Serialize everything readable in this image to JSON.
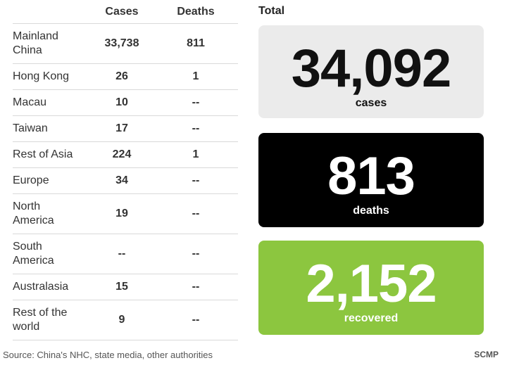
{
  "table": {
    "header": {
      "cases": "Cases",
      "deaths": "Deaths"
    },
    "rows": [
      {
        "region_lines": [
          "Mainland",
          "China"
        ],
        "cases": "33,738",
        "deaths": "811"
      },
      {
        "region_lines": [
          "Hong Kong"
        ],
        "cases": "26",
        "deaths": "1"
      },
      {
        "region_lines": [
          "Macau"
        ],
        "cases": "10",
        "deaths": "--"
      },
      {
        "region_lines": [
          "Taiwan"
        ],
        "cases": "17",
        "deaths": "--"
      },
      {
        "region_lines": [
          "Rest of Asia"
        ],
        "cases": "224",
        "deaths": "1"
      },
      {
        "region_lines": [
          "Europe"
        ],
        "cases": "34",
        "deaths": "--"
      },
      {
        "region_lines": [
          "North",
          "America"
        ],
        "cases": "19",
        "deaths": "--"
      },
      {
        "region_lines": [
          "South",
          "America"
        ],
        "cases": "--",
        "deaths": "--"
      },
      {
        "region_lines": [
          "Australasia"
        ],
        "cases": "15",
        "deaths": "--"
      },
      {
        "region_lines": [
          "Rest of the",
          "world"
        ],
        "cases": "9",
        "deaths": "--"
      }
    ]
  },
  "totals": {
    "title": "Total",
    "cases": {
      "value": "34,092",
      "label": "cases"
    },
    "deaths": {
      "value": "813",
      "label": "deaths"
    },
    "recovered": {
      "value": "2,152",
      "label": "recovered"
    }
  },
  "colors": {
    "cases_card": "#ebebeb",
    "deaths_card": "#000000",
    "recovered_card": "#8cc63f"
  },
  "footer": {
    "source": "Source: China's NHC, state media, other authorities",
    "credit": "SCMP"
  },
  "chart_data": {
    "type": "table",
    "columns": [
      "Region",
      "Cases",
      "Deaths"
    ],
    "rows": [
      [
        "Mainland China",
        33738,
        811
      ],
      [
        "Hong Kong",
        26,
        1
      ],
      [
        "Macau",
        10,
        null
      ],
      [
        "Taiwan",
        17,
        null
      ],
      [
        "Rest of Asia",
        224,
        1
      ],
      [
        "Europe",
        34,
        null
      ],
      [
        "North America",
        19,
        null
      ],
      [
        "South America",
        null,
        null
      ],
      [
        "Australasia",
        15,
        null
      ],
      [
        "Rest of the world",
        9,
        null
      ]
    ],
    "totals": {
      "cases": 34092,
      "deaths": 813,
      "recovered": 2152
    }
  }
}
